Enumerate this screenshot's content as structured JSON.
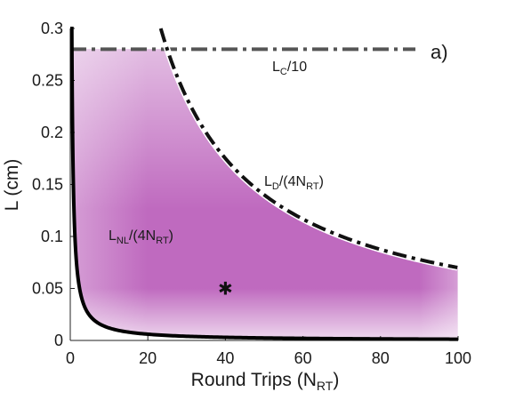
{
  "chart_data": {
    "type": "area",
    "panel_label": "a)",
    "xlabel": {
      "main": "Round Trips (N",
      "sub": "RT",
      "close": ")"
    },
    "ylabel": "L (cm)",
    "xlim": [
      0,
      100
    ],
    "ylim": [
      0,
      0.3
    ],
    "xticks": [
      "0",
      "20",
      "40",
      "60",
      "80",
      "100"
    ],
    "yticks": [
      "0",
      "0.05",
      "0.1",
      "0.15",
      "0.2",
      "0.25",
      "0.3"
    ],
    "grid": false,
    "series": [
      {
        "label": {
          "main": "L",
          "sub": "C",
          "rest": "/10"
        },
        "style": "dash-dot",
        "color": "#555555",
        "constant_y": 0.28
      },
      {
        "label": {
          "main": "L",
          "sub": "D",
          "rest": "/(4N",
          "sub2": "RT",
          "close": ")"
        },
        "style": "dash-dot",
        "color": "#111111",
        "formula": "y = 7 / x",
        "x_start": 23.3,
        "x_end": 100
      },
      {
        "label": {
          "main": "L",
          "sub": "NL",
          "rest": "/(4N",
          "sub2": "RT",
          "close": ")"
        },
        "style": "solid",
        "color": "#000000",
        "formula": "y = 0.12 / x",
        "x_start": 0.4,
        "x_end": 100
      }
    ],
    "feasible_region": {
      "description": "between NL and min(LC/10, LD) curves",
      "color": "#b450b4"
    },
    "marker": {
      "x": 40,
      "y": 0.05,
      "symbol": "✱"
    }
  }
}
